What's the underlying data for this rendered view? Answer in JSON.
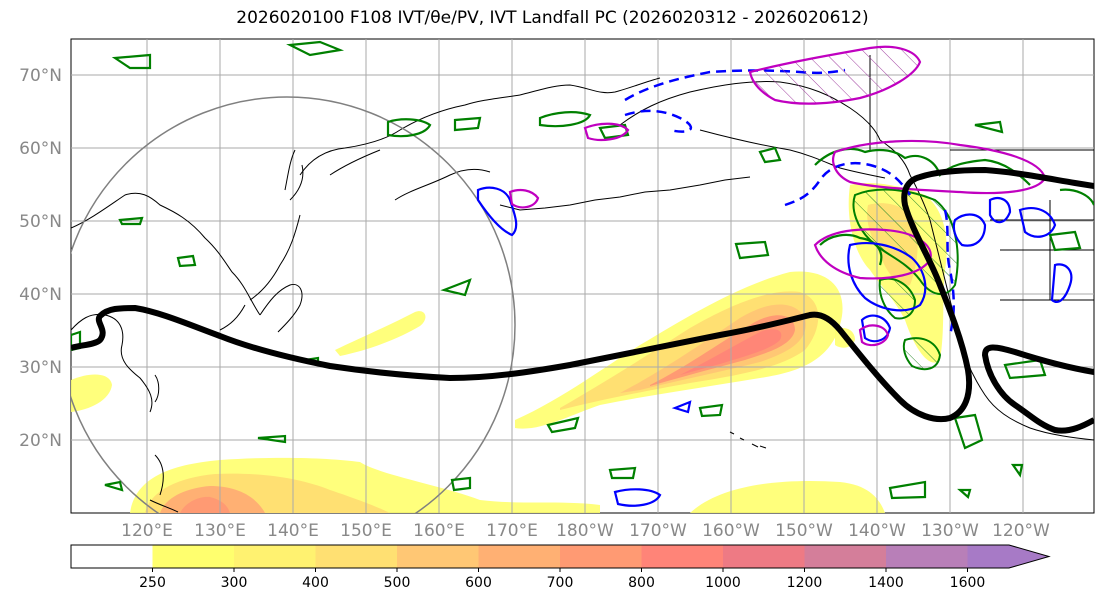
{
  "title": "2026020100 F108 IVT/θe/PV, IVT Landfall PC (2026020312 - 2026020612)",
  "lat_labels": [
    "70°N",
    "60°N",
    "50°N",
    "40°N",
    "30°N",
    "20°N"
  ],
  "lon_labels": [
    "120°E",
    "130°E",
    "140°E",
    "150°E",
    "160°E",
    "170°E",
    "180°W",
    "170°W",
    "160°W",
    "150°W",
    "140°W",
    "130°W",
    "120°W"
  ],
  "colorbar": {
    "ticks": [
      "250",
      "300",
      "400",
      "500",
      "600",
      "700",
      "800",
      "1000",
      "1200",
      "1400",
      "1600"
    ],
    "colors": [
      "#ffffff",
      "#ffff6e",
      "#fff270",
      "#ffe072",
      "#ffc774",
      "#ffb073",
      "#ff9a73",
      "#ff8478",
      "#ee7a84",
      "#d47e9a",
      "#b87fb8",
      "#a77ac6"
    ]
  },
  "colors": {
    "ivt_contour": "#000000",
    "theta_e_contour": "#008000",
    "pv_negative": "#0000ff",
    "pv_positive": "#c000c0",
    "gridline": "#aaaaaa",
    "coastline": "#000000",
    "circle": "#808080"
  }
}
